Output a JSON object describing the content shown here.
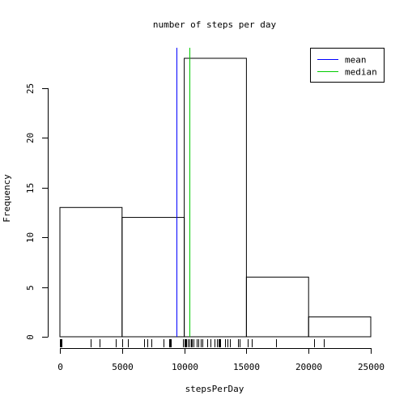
{
  "chart_data": {
    "type": "bar",
    "title": "number of steps per day",
    "xlabel": "stepsPerDay",
    "ylabel": "Frequency",
    "bins": [
      {
        "start": 0,
        "end": 5000,
        "count": 13
      },
      {
        "start": 5000,
        "end": 10000,
        "count": 12
      },
      {
        "start": 10000,
        "end": 15000,
        "count": 28
      },
      {
        "start": 15000,
        "end": 20000,
        "count": 6
      },
      {
        "start": 20000,
        "end": 25000,
        "count": 2
      }
    ],
    "xlim": [
      0,
      25000
    ],
    "ylim": [
      0,
      28
    ],
    "x_ticks": [
      0,
      5000,
      10000,
      15000,
      20000,
      25000
    ],
    "y_ticks": [
      0,
      5,
      10,
      15,
      20,
      25
    ],
    "reference_lines": [
      {
        "name": "mean",
        "value": 9354,
        "color": "#0000ff"
      },
      {
        "name": "median",
        "value": 10395,
        "color": "#00cc00"
      }
    ],
    "legend_position": "top-right",
    "grid": false,
    "rug": [
      0,
      41,
      126,
      2492,
      3219,
      4472,
      5018,
      5441,
      6778,
      7047,
      7336,
      8334,
      8355,
      8821,
      8841,
      8918,
      9900,
      10000,
      10056,
      10119,
      10139,
      10183,
      10304,
      10395,
      10439,
      10600,
      10765,
      10571,
      11015,
      11162,
      11352,
      11458,
      11829,
      11834,
      12116,
      12426,
      12608,
      12787,
      12811,
      12883,
      13294,
      13452,
      13460,
      13646,
      14339,
      14478,
      15084,
      15098,
      15110,
      15414,
      17382,
      20427,
      21194
    ]
  }
}
